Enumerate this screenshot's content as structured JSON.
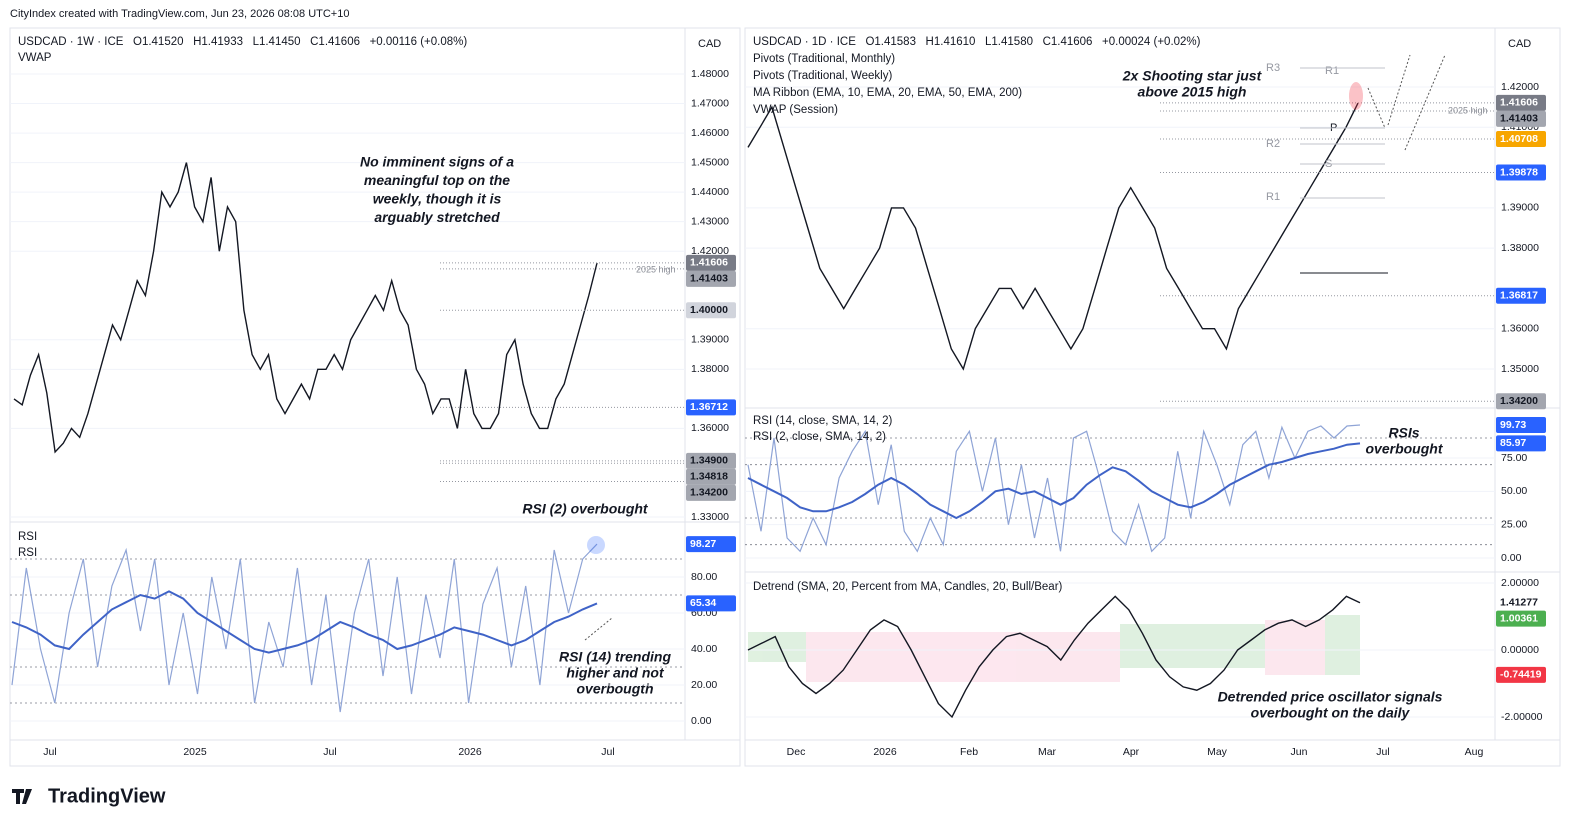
{
  "header": {
    "credit": "CityIndex created with TradingView.com, Jun 23, 2026 08:08 UTC+10"
  },
  "footer": {
    "brand": "TradingView"
  },
  "left": {
    "legend": [
      "USDCAD · 1W · ICE   O1.41520   H1.41933   L1.41450   C1.41606   +0.00116 (+0.08%)",
      "VWAP"
    ],
    "currency": "CAD",
    "price_ticks": [
      {
        "value": 1.48,
        "label": "1.48000"
      },
      {
        "value": 1.47,
        "label": "1.47000"
      },
      {
        "value": 1.46,
        "label": "1.46000"
      },
      {
        "value": 1.45,
        "label": "1.45000"
      },
      {
        "value": 1.44,
        "label": "1.44000"
      },
      {
        "value": 1.43,
        "label": "1.43000"
      },
      {
        "value": 1.42,
        "label": "1.42000"
      },
      {
        "value": 1.39,
        "label": "1.39000"
      },
      {
        "value": 1.38,
        "label": "1.38000"
      },
      {
        "value": 1.36,
        "label": "1.36000"
      },
      {
        "value": 1.33,
        "label": "1.33000"
      }
    ],
    "price_labels": [
      {
        "value": 1.41606,
        "color": "#787b86"
      },
      {
        "value": 1.41403,
        "color": "#a3a6af"
      },
      {
        "value": 1.4,
        "label": "1.40000",
        "color": "#d1d4dc"
      },
      {
        "value": 1.36712,
        "color": "#2962ff"
      },
      {
        "value": 1.349,
        "label": "1.34900",
        "color": "#a3a6af"
      },
      {
        "value": 1.34818,
        "color": "#a3a6af"
      },
      {
        "value": 1.342,
        "label": "1.34200",
        "color": "#a3a6af"
      }
    ],
    "close": [
      1.37,
      1.368,
      1.378,
      1.385,
      1.372,
      1.352,
      1.355,
      1.36,
      1.357,
      1.365,
      1.375,
      1.385,
      1.395,
      1.39,
      1.4,
      1.41,
      1.405,
      1.42,
      1.44,
      1.435,
      1.44,
      1.45,
      1.435,
      1.43,
      1.445,
      1.42,
      1.435,
      1.43,
      1.4,
      1.385,
      1.38,
      1.385,
      1.37,
      1.365,
      1.37,
      1.375,
      1.37,
      1.38,
      1.38,
      1.385,
      1.38,
      1.39,
      1.395,
      1.4,
      1.405,
      1.4,
      1.41,
      1.4,
      1.395,
      1.38,
      1.375,
      1.365,
      1.37,
      1.37,
      1.36,
      1.38,
      1.365,
      1.36,
      1.36,
      1.365,
      1.385,
      1.39,
      1.375,
      1.365,
      1.36,
      1.36,
      1.37,
      1.375,
      1.385,
      1.395,
      1.405,
      1.416
    ],
    "annotations": [
      [
        "No imminent signs of a",
        "meaningful top on the",
        "weekly, though it is",
        "arguably stretched"
      ],
      [
        "RSI (2) overbought"
      ],
      [
        "RSI (14) trending",
        "higher and not",
        "overbougth"
      ],
      [
        "2025 high"
      ]
    ],
    "rsi": {
      "titles": [
        "RSI",
        "RSI"
      ],
      "ticks": [
        {
          "value": 80,
          "label": "80.00"
        },
        {
          "value": 60,
          "label": "60.00"
        },
        {
          "value": 40,
          "label": "40.00"
        },
        {
          "value": 20,
          "label": "20.00"
        },
        {
          "value": 0,
          "label": "0.00"
        }
      ],
      "levels": [
        90,
        70,
        30,
        10
      ],
      "labels": [
        {
          "value": 98.27,
          "color": "#2962ff"
        },
        {
          "value": 65.34,
          "color": "#2962ff"
        }
      ],
      "rsi14": [
        55,
        52,
        48,
        42,
        40,
        48,
        55,
        62,
        66,
        70,
        68,
        72,
        68,
        60,
        55,
        50,
        45,
        40,
        38,
        40,
        42,
        45,
        50,
        55,
        52,
        48,
        45,
        40,
        42,
        45,
        48,
        52,
        50,
        48,
        45,
        42,
        45,
        50,
        55,
        58,
        62,
        65.34
      ],
      "rsi2": [
        20,
        85,
        40,
        10,
        60,
        90,
        30,
        75,
        95,
        50,
        90,
        20,
        60,
        15,
        80,
        40,
        90,
        10,
        55,
        30,
        85,
        20,
        70,
        5,
        60,
        90,
        25,
        80,
        15,
        70,
        35,
        90,
        10,
        65,
        85,
        30,
        75,
        20,
        95,
        60,
        90,
        98.27
      ]
    },
    "x_labels": [
      "Jul",
      "2025",
      "Jul",
      "2026",
      "Jul"
    ]
  },
  "right": {
    "legend": [
      "USDCAD · 1D · ICE   O1.41583   H1.41610   L1.41580   C1.41606   +0.00024 (+0.02%)",
      "Pivots (Traditional, Monthly)",
      "Pivots (Traditional, Weekly)",
      "MA Ribbon (EMA, 10, EMA, 20, EMA, 50, EMA, 200)",
      "VWAP (Session)"
    ],
    "currency": "CAD",
    "price_ticks": [
      {
        "value": 1.42,
        "label": "1.42000"
      },
      {
        "value": 1.41,
        "label": "1.41000"
      },
      {
        "value": 1.39,
        "label": "1.39000"
      },
      {
        "value": 1.38,
        "label": "1.38000"
      },
      {
        "value": 1.36,
        "label": "1.36000"
      },
      {
        "value": 1.35,
        "label": "1.35000"
      }
    ],
    "price_labels": [
      {
        "value": 1.41606,
        "color": "#787b86"
      },
      {
        "value": 1.41403,
        "color": "#a3a6af"
      },
      {
        "value": 1.40708,
        "color": "#f7a600"
      },
      {
        "value": 1.39878,
        "color": "#2962ff"
      },
      {
        "value": 1.36817,
        "color": "#2962ff"
      },
      {
        "value": 1.342,
        "label": "1.34200",
        "color": "#a3a6af"
      }
    ],
    "close": [
      1.405,
      1.41,
      1.415,
      1.405,
      1.395,
      1.385,
      1.375,
      1.37,
      1.365,
      1.37,
      1.375,
      1.38,
      1.39,
      1.39,
      1.385,
      1.375,
      1.365,
      1.355,
      1.35,
      1.36,
      1.365,
      1.37,
      1.37,
      1.365,
      1.37,
      1.365,
      1.36,
      1.355,
      1.36,
      1.37,
      1.38,
      1.39,
      1.395,
      1.39,
      1.385,
      1.375,
      1.37,
      1.365,
      1.36,
      1.36,
      1.355,
      1.365,
      1.37,
      1.375,
      1.38,
      1.385,
      1.39,
      1.395,
      1.4,
      1.405,
      1.41,
      1.416
    ],
    "pivot_labels": [
      "R3",
      "R1",
      "R2",
      "P",
      "S",
      "R1"
    ],
    "annotations": [
      [
        "2x Shooting star just",
        "above 2015 high"
      ],
      [
        "2025 high"
      ],
      [
        "RSIs",
        "overbought"
      ],
      [
        "Detrended price oscillator signals",
        "overbought on the daily"
      ]
    ],
    "rsi": {
      "titles": [
        "RSI (14, close, SMA, 14, 2)",
        "RSI (2, close, SMA, 14, 2)"
      ],
      "ticks": [
        {
          "value": 75,
          "label": "75.00"
        },
        {
          "value": 50,
          "label": "50.00"
        },
        {
          "value": 25,
          "label": "25.00"
        },
        {
          "value": 0,
          "label": "0.00"
        }
      ],
      "levels": [
        90,
        70,
        30,
        10
      ],
      "labels": [
        {
          "value": 99.73,
          "color": "#2962ff"
        },
        {
          "value": 85.97,
          "color": "#2962ff"
        }
      ],
      "rsi14": [
        60,
        55,
        50,
        45,
        38,
        35,
        35,
        38,
        42,
        48,
        55,
        60,
        55,
        48,
        40,
        35,
        30,
        35,
        42,
        50,
        52,
        48,
        50,
        45,
        40,
        45,
        55,
        62,
        68,
        65,
        58,
        50,
        45,
        40,
        38,
        42,
        48,
        55,
        60,
        65,
        70,
        72,
        75,
        78,
        80,
        82,
        85,
        85.97
      ],
      "rsi2": [
        70,
        20,
        90,
        15,
        5,
        30,
        10,
        60,
        80,
        95,
        40,
        85,
        20,
        5,
        30,
        10,
        80,
        95,
        50,
        90,
        25,
        70,
        15,
        60,
        5,
        90,
        95,
        60,
        20,
        10,
        40,
        5,
        15,
        80,
        30,
        95,
        70,
        40,
        85,
        95,
        60,
        98,
        75,
        95,
        99,
        90,
        99,
        99.73
      ]
    },
    "detrend": {
      "title": "Detrend (SMA, 20, Percent from MA, Candles, 20, Bull/Bear)",
      "ticks": [
        {
          "value": 2,
          "label": "2.00000"
        },
        {
          "value": 0,
          "label": "0.00000"
        },
        {
          "value": -2,
          "label": "-2.00000"
        }
      ],
      "labels": [
        {
          "value": 1.41277,
          "color": "#ffffff"
        },
        {
          "value": 1.00361,
          "color": "#4caf50"
        },
        {
          "value": -0.74419,
          "color": "#f23645"
        }
      ],
      "values": [
        0,
        0.2,
        0.4,
        -0.5,
        -1,
        -1.3,
        -1,
        -0.6,
        0,
        0.6,
        0.9,
        0.7,
        0,
        -0.8,
        -1.6,
        -2,
        -1.2,
        -0.5,
        0,
        0.4,
        0.5,
        0.3,
        0.1,
        -0.3,
        0.3,
        0.8,
        1.2,
        1.6,
        1.2,
        0.5,
        -0.3,
        -0.8,
        -1.1,
        -1.2,
        -1,
        -0.6,
        0,
        0.3,
        0.6,
        0.8,
        0.9,
        0.7,
        0.9,
        1.2,
        1.6,
        1.41277
      ]
    },
    "x_labels": [
      "Dec",
      "2026",
      "Feb",
      "Mar",
      "Apr",
      "May",
      "Jun",
      "Jul",
      "Aug"
    ]
  }
}
